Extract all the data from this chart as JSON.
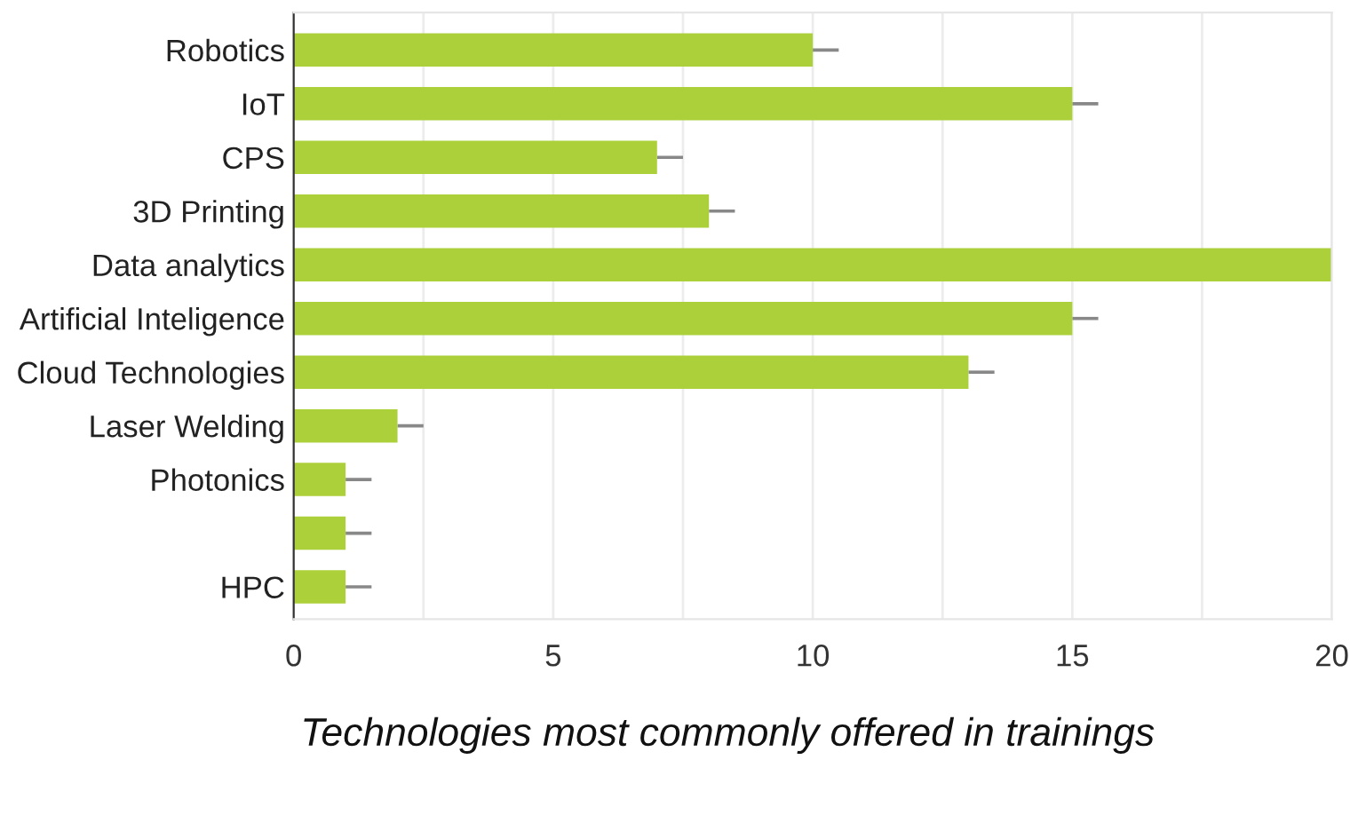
{
  "chart_data": {
    "type": "bar",
    "orientation": "horizontal",
    "categories": [
      "Robotics",
      "IoT",
      "CPS",
      "3D Printing",
      "Data analytics",
      "Artificial Inteligence",
      "Cloud Technologies",
      "Laser Welding",
      "Photonics",
      null,
      "HPC"
    ],
    "values": [
      10,
      15,
      7,
      8,
      20,
      15,
      13,
      2,
      1,
      1,
      1
    ],
    "errors": [
      [
        10,
        10.5
      ],
      [
        15,
        15.5
      ],
      [
        7,
        7.5
      ],
      [
        8,
        8.5
      ],
      null,
      [
        15,
        15.5
      ],
      [
        13,
        13.5
      ],
      [
        2,
        2.5
      ],
      [
        1,
        1.5
      ],
      [
        1,
        1.5
      ],
      [
        1,
        1.5
      ]
    ],
    "color": "#acd03a",
    "xlim": [
      0,
      20
    ],
    "xticks": [
      0,
      {
        "value": 2.5,
        "label": null
      },
      5,
      {
        "value": 7.5,
        "label": null
      },
      10,
      {
        "value": 12.5,
        "label": null
      },
      15,
      {
        "value": 17.5,
        "label": null
      },
      20
    ],
    "grid": "x",
    "annotations": [
      "Technologies most commonly offered in trainings"
    ]
  }
}
